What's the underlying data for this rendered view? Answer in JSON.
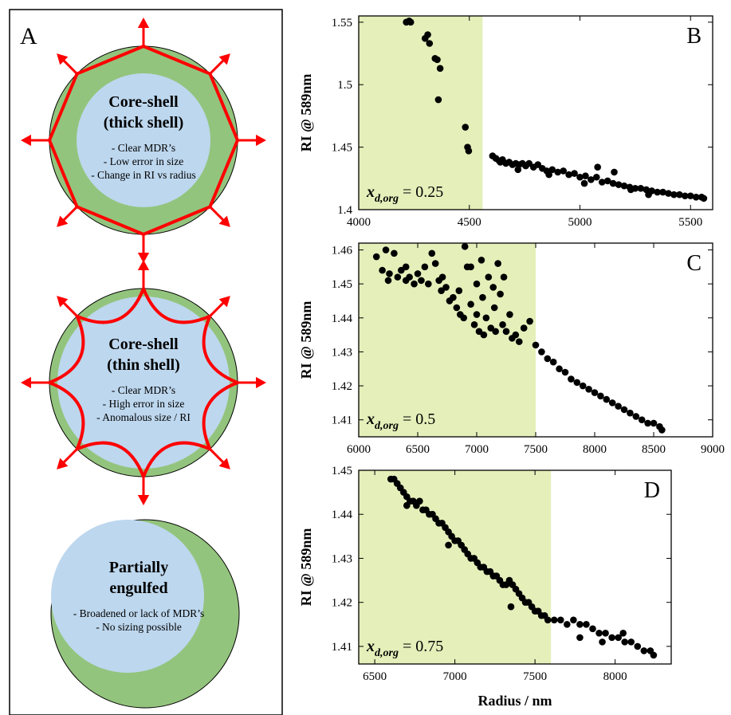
{
  "panel_a": {
    "label": "A",
    "items": [
      {
        "title1": "Core-shell",
        "title2": "(thick shell)",
        "notes": [
          "- Clear MDR’s",
          "- Low error in size",
          "- Change in RI vs radius"
        ]
      },
      {
        "title1": "Core-shell",
        "title2": "(thin shell)",
        "notes": [
          "- Clear MDR’s",
          "- High error in size",
          "- Anomalous size / RI"
        ]
      },
      {
        "title1": "Partially",
        "title2": "engulfed",
        "notes": [
          "- Broadened or lack of MDR’s",
          "- No sizing possible"
        ]
      }
    ]
  },
  "colors": {
    "shell": "#93c47d",
    "core": "#bdd7ee",
    "arrow": "#ff0000",
    "shade": "#e4efba",
    "point": "#000000"
  },
  "chart_data": [
    {
      "type": "scatter",
      "panel_label": "B",
      "ylabel": "RI @ 589nm",
      "xlabel": "",
      "xlim": [
        4000,
        5600
      ],
      "ylim": [
        1.4,
        1.555
      ],
      "xticks": [
        4000,
        4500,
        5000,
        5500
      ],
      "yticks": [
        1.4,
        1.45,
        1.5,
        1.55
      ],
      "ytick_labels": [
        "1.4",
        "1.45",
        "1.5",
        "1.55"
      ],
      "shade_range": [
        4000,
        4560
      ],
      "annotation": {
        "sym": "x",
        "sub": "d,org",
        "value": "= 0.25"
      },
      "points": [
        [
          4215,
          1.55
        ],
        [
          4228,
          1.551
        ],
        [
          4235,
          1.55
        ],
        [
          4300,
          1.537
        ],
        [
          4312,
          1.54
        ],
        [
          4320,
          1.533
        ],
        [
          4345,
          1.521
        ],
        [
          4355,
          1.52
        ],
        [
          4368,
          1.513
        ],
        [
          4360,
          1.488
        ],
        [
          4482,
          1.466
        ],
        [
          4492,
          1.45
        ],
        [
          4497,
          1.447
        ],
        [
          4605,
          1.443
        ],
        [
          4620,
          1.441
        ],
        [
          4635,
          1.439
        ],
        [
          4650,
          1.44
        ],
        [
          4665,
          1.437
        ],
        [
          4680,
          1.438
        ],
        [
          4695,
          1.436
        ],
        [
          4710,
          1.437
        ],
        [
          4725,
          1.436
        ],
        [
          4740,
          1.437
        ],
        [
          4755,
          1.435
        ],
        [
          4770,
          1.437
        ],
        [
          4790,
          1.434
        ],
        [
          4810,
          1.436
        ],
        [
          4830,
          1.433
        ],
        [
          4850,
          1.431
        ],
        [
          4875,
          1.432
        ],
        [
          4900,
          1.43
        ],
        [
          4925,
          1.431
        ],
        [
          4950,
          1.428
        ],
        [
          4975,
          1.429
        ],
        [
          5000,
          1.426
        ],
        [
          5025,
          1.427
        ],
        [
          5050,
          1.424
        ],
        [
          5075,
          1.426
        ],
        [
          5100,
          1.422
        ],
        [
          5125,
          1.423
        ],
        [
          5150,
          1.421
        ],
        [
          5175,
          1.42
        ],
        [
          5200,
          1.419
        ],
        [
          5225,
          1.418
        ],
        [
          5250,
          1.417
        ],
        [
          5275,
          1.417
        ],
        [
          5300,
          1.416
        ],
        [
          5325,
          1.415
        ],
        [
          5350,
          1.414
        ],
        [
          5375,
          1.414
        ],
        [
          5400,
          1.413
        ],
        [
          5425,
          1.412
        ],
        [
          5450,
          1.412
        ],
        [
          5475,
          1.411
        ],
        [
          5500,
          1.411
        ],
        [
          5525,
          1.41
        ],
        [
          5550,
          1.41
        ],
        [
          5560,
          1.409
        ],
        [
          5080,
          1.434
        ],
        [
          5155,
          1.43
        ],
        [
          4860,
          1.428
        ],
        [
          4720,
          1.432
        ],
        [
          4640,
          1.438
        ],
        [
          5020,
          1.421
        ],
        [
          5230,
          1.416
        ],
        [
          5310,
          1.412
        ]
      ]
    },
    {
      "type": "scatter",
      "panel_label": "C",
      "ylabel": "RI @ 589nm",
      "xlabel": "",
      "xlim": [
        6000,
        9000
      ],
      "ylim": [
        1.405,
        1.462
      ],
      "xticks": [
        6000,
        6500,
        7000,
        7500,
        8000,
        8500,
        9000
      ],
      "yticks": [
        1.41,
        1.42,
        1.43,
        1.44,
        1.45,
        1.46
      ],
      "ytick_labels": [
        "1.41",
        "1.42",
        "1.43",
        "1.44",
        "1.45",
        "1.46"
      ],
      "shade_range": [
        6000,
        7500
      ],
      "annotation": {
        "sym": "x",
        "sub": "d,org",
        "value": "= 0.5"
      },
      "points": [
        [
          6150,
          1.458
        ],
        [
          6200,
          1.454
        ],
        [
          6230,
          1.46
        ],
        [
          6260,
          1.453
        ],
        [
          6300,
          1.459
        ],
        [
          6330,
          1.452
        ],
        [
          6360,
          1.454
        ],
        [
          6400,
          1.451
        ],
        [
          6430,
          1.452
        ],
        [
          6470,
          1.45
        ],
        [
          6500,
          1.453
        ],
        [
          6530,
          1.451
        ],
        [
          6560,
          1.455
        ],
        [
          6590,
          1.45
        ],
        [
          6620,
          1.459
        ],
        [
          6650,
          1.456
        ],
        [
          6680,
          1.451
        ],
        [
          6710,
          1.452
        ],
        [
          6740,
          1.449
        ],
        [
          6770,
          1.445
        ],
        [
          6800,
          1.446
        ],
        [
          6830,
          1.443
        ],
        [
          6860,
          1.441
        ],
        [
          6890,
          1.44
        ],
        [
          6900,
          1.461
        ],
        [
          6920,
          1.455
        ],
        [
          6950,
          1.444
        ],
        [
          6980,
          1.438
        ],
        [
          7000,
          1.441
        ],
        [
          7020,
          1.436
        ],
        [
          7040,
          1.457
        ],
        [
          7060,
          1.435
        ],
        [
          7080,
          1.44
        ],
        [
          7100,
          1.452
        ],
        [
          7120,
          1.437
        ],
        [
          7140,
          1.449
        ],
        [
          7160,
          1.436
        ],
        [
          7180,
          1.456
        ],
        [
          7200,
          1.447
        ],
        [
          7220,
          1.438
        ],
        [
          7250,
          1.436
        ],
        [
          7280,
          1.441
        ],
        [
          7300,
          1.434
        ],
        [
          7330,
          1.435
        ],
        [
          7360,
          1.433
        ],
        [
          7400,
          1.437
        ],
        [
          7450,
          1.439
        ],
        [
          7500,
          1.432
        ],
        [
          7550,
          1.43
        ],
        [
          7600,
          1.428
        ],
        [
          7650,
          1.427
        ],
        [
          7700,
          1.425
        ],
        [
          7750,
          1.424
        ],
        [
          7800,
          1.422
        ],
        [
          7850,
          1.421
        ],
        [
          7900,
          1.42
        ],
        [
          7950,
          1.419
        ],
        [
          8000,
          1.418
        ],
        [
          8050,
          1.417
        ],
        [
          8100,
          1.416
        ],
        [
          8150,
          1.415
        ],
        [
          8200,
          1.414
        ],
        [
          8250,
          1.413
        ],
        [
          8300,
          1.412
        ],
        [
          8350,
          1.411
        ],
        [
          8400,
          1.41
        ],
        [
          8450,
          1.409
        ],
        [
          8500,
          1.409
        ],
        [
          8550,
          1.408
        ],
        [
          8570,
          1.407
        ],
        [
          6950,
          1.455
        ],
        [
          7050,
          1.446
        ],
        [
          6850,
          1.448
        ],
        [
          7150,
          1.443
        ],
        [
          6700,
          1.448
        ],
        [
          6400,
          1.455
        ],
        [
          6250,
          1.451
        ],
        [
          7000,
          1.45
        ],
        [
          7230,
          1.452
        ]
      ]
    },
    {
      "type": "scatter",
      "panel_label": "D",
      "ylabel": "RI @ 589nm",
      "xlabel": "Radius / nm",
      "xlim": [
        6400,
        8350
      ],
      "ylim": [
        1.406,
        1.45
      ],
      "xticks": [
        6500,
        7000,
        7500,
        8000
      ],
      "yticks": [
        1.41,
        1.42,
        1.43,
        1.44,
        1.45
      ],
      "ytick_labels": [
        "1.41",
        "1.42",
        "1.43",
        "1.44",
        "1.45"
      ],
      "shade_range": [
        6400,
        7600
      ],
      "annotation": {
        "sym": "x",
        "sub": "d,org",
        "value": "= 0.75"
      },
      "points": [
        [
          6600,
          1.448
        ],
        [
          6620,
          1.448
        ],
        [
          6640,
          1.447
        ],
        [
          6660,
          1.446
        ],
        [
          6680,
          1.445
        ],
        [
          6700,
          1.444
        ],
        [
          6720,
          1.443
        ],
        [
          6740,
          1.443
        ],
        [
          6760,
          1.442
        ],
        [
          6780,
          1.443
        ],
        [
          6800,
          1.441
        ],
        [
          6820,
          1.441
        ],
        [
          6840,
          1.44
        ],
        [
          6860,
          1.44
        ],
        [
          6880,
          1.439
        ],
        [
          6900,
          1.438
        ],
        [
          6920,
          1.438
        ],
        [
          6940,
          1.437
        ],
        [
          6960,
          1.436
        ],
        [
          6980,
          1.435
        ],
        [
          7000,
          1.434
        ],
        [
          7020,
          1.434
        ],
        [
          7040,
          1.433
        ],
        [
          7060,
          1.432
        ],
        [
          7080,
          1.431
        ],
        [
          7100,
          1.43
        ],
        [
          7120,
          1.43
        ],
        [
          7140,
          1.429
        ],
        [
          7160,
          1.428
        ],
        [
          7180,
          1.428
        ],
        [
          7200,
          1.427
        ],
        [
          7220,
          1.427
        ],
        [
          7240,
          1.426
        ],
        [
          7260,
          1.426
        ],
        [
          7280,
          1.425
        ],
        [
          7300,
          1.424
        ],
        [
          7320,
          1.424
        ],
        [
          7340,
          1.425
        ],
        [
          7360,
          1.424
        ],
        [
          7380,
          1.423
        ],
        [
          7400,
          1.422
        ],
        [
          7420,
          1.421
        ],
        [
          7440,
          1.42
        ],
        [
          7460,
          1.42
        ],
        [
          7480,
          1.419
        ],
        [
          7500,
          1.418
        ],
        [
          7520,
          1.418
        ],
        [
          7540,
          1.417
        ],
        [
          7560,
          1.417
        ],
        [
          7580,
          1.416
        ],
        [
          7620,
          1.416
        ],
        [
          7660,
          1.416
        ],
        [
          7700,
          1.415
        ],
        [
          7740,
          1.416
        ],
        [
          7780,
          1.415
        ],
        [
          7820,
          1.415
        ],
        [
          7860,
          1.414
        ],
        [
          7900,
          1.413
        ],
        [
          7940,
          1.413
        ],
        [
          7980,
          1.412
        ],
        [
          8020,
          1.412
        ],
        [
          8060,
          1.411
        ],
        [
          8100,
          1.411
        ],
        [
          8140,
          1.41
        ],
        [
          8180,
          1.409
        ],
        [
          8220,
          1.409
        ],
        [
          8240,
          1.408
        ],
        [
          7240,
          1.426
        ],
        [
          7350,
          1.419
        ],
        [
          7780,
          1.412
        ],
        [
          7920,
          1.411
        ],
        [
          8050,
          1.413
        ],
        [
          6700,
          1.442
        ],
        [
          6960,
          1.433
        ]
      ]
    }
  ]
}
